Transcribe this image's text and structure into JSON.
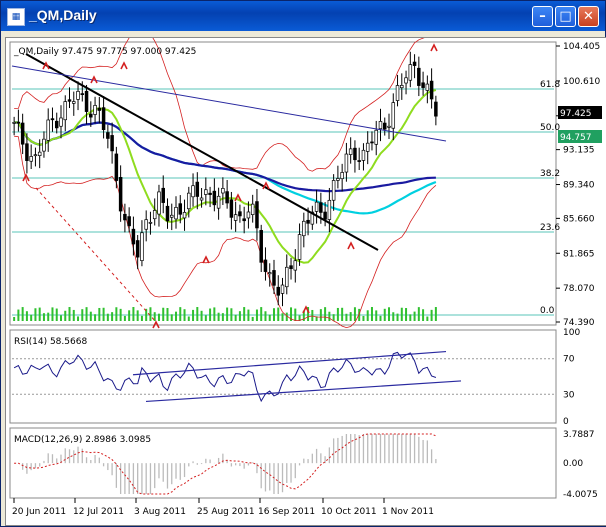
{
  "window": {
    "title": "_QM,Daily",
    "icon": "chart-window-icon",
    "buttons": [
      "minimize-icon",
      "maximize-icon",
      "close-icon"
    ]
  },
  "main_pane": {
    "header": "_QM,Daily  97.475 97.775 97.000 97.425",
    "price_axis": [
      "104.405",
      "100.610",
      "96.815",
      "93.135",
      "89.340",
      "85.660",
      "81.865",
      "78.070",
      "74.390"
    ],
    "current_price": "97.425",
    "marked_price": "94.757",
    "fib_levels": [
      "61.8",
      "50.0",
      "38.2",
      "23.6",
      "0.0"
    ]
  },
  "rsi_pane": {
    "header": "RSI(14) 58.5668",
    "axis": [
      "100",
      "70",
      "30",
      "0"
    ]
  },
  "macd_pane": {
    "header": "MACD(12,26,9) 2.8986 3.0985",
    "axis": [
      "3.7887",
      "0.00",
      "-4.0075"
    ]
  },
  "time_axis": [
    "20 Jun 2011",
    "12 Jul 2011",
    "3 Aug 2011",
    "25 Aug 2011",
    "16 Sep 2011",
    "10 Oct 2011",
    "1 Nov 2011"
  ],
  "colors": {
    "titlebar": "#0a5bd6",
    "candles": "#000000",
    "bollinger": "#d42020",
    "ma_fast": "#8fdc1f",
    "ma_mid": "#00d0e0",
    "ma_slow": "#1a1aa0",
    "fib": "#20b0a0",
    "rsi": "#1a1a8a",
    "macd_signal": "#d42020"
  },
  "chart_data": {
    "type": "candlestick",
    "title": "_QM,Daily",
    "ohlc_last": {
      "open": 97.475,
      "high": 97.775,
      "low": 97.0,
      "close": 97.425
    },
    "y_range": [
      74.39,
      104.405
    ],
    "x_ticks": [
      "20 Jun 2011",
      "12 Jul 2011",
      "3 Aug 2011",
      "25 Aug 2011",
      "16 Sep 2011",
      "10 Oct 2011",
      "1 Nov 2011"
    ],
    "close_path": [
      95.5,
      93.8,
      91.8,
      94.5,
      96.8,
      97.6,
      98.9,
      98.4,
      97.2,
      94.8,
      90.0,
      84.0,
      81.8,
      86.2,
      87.4,
      85.8,
      86.8,
      87.5,
      88.6,
      88.5,
      87.6,
      87.0,
      85.6,
      86.8,
      82.0,
      78.9,
      77.2,
      81.2,
      84.6,
      86.1,
      86.5,
      88.8,
      91.1,
      93.5,
      92.2,
      94.7,
      96.1,
      98.1,
      101.1,
      102.6,
      99.2,
      97.4
    ],
    "rsi": {
      "value": 58.5668,
      "range": [
        0,
        100
      ],
      "levels": [
        70,
        30
      ]
    },
    "macd": {
      "main": 2.8986,
      "signal": 3.0985,
      "range": [
        -4.0075,
        3.7887
      ]
    }
  }
}
